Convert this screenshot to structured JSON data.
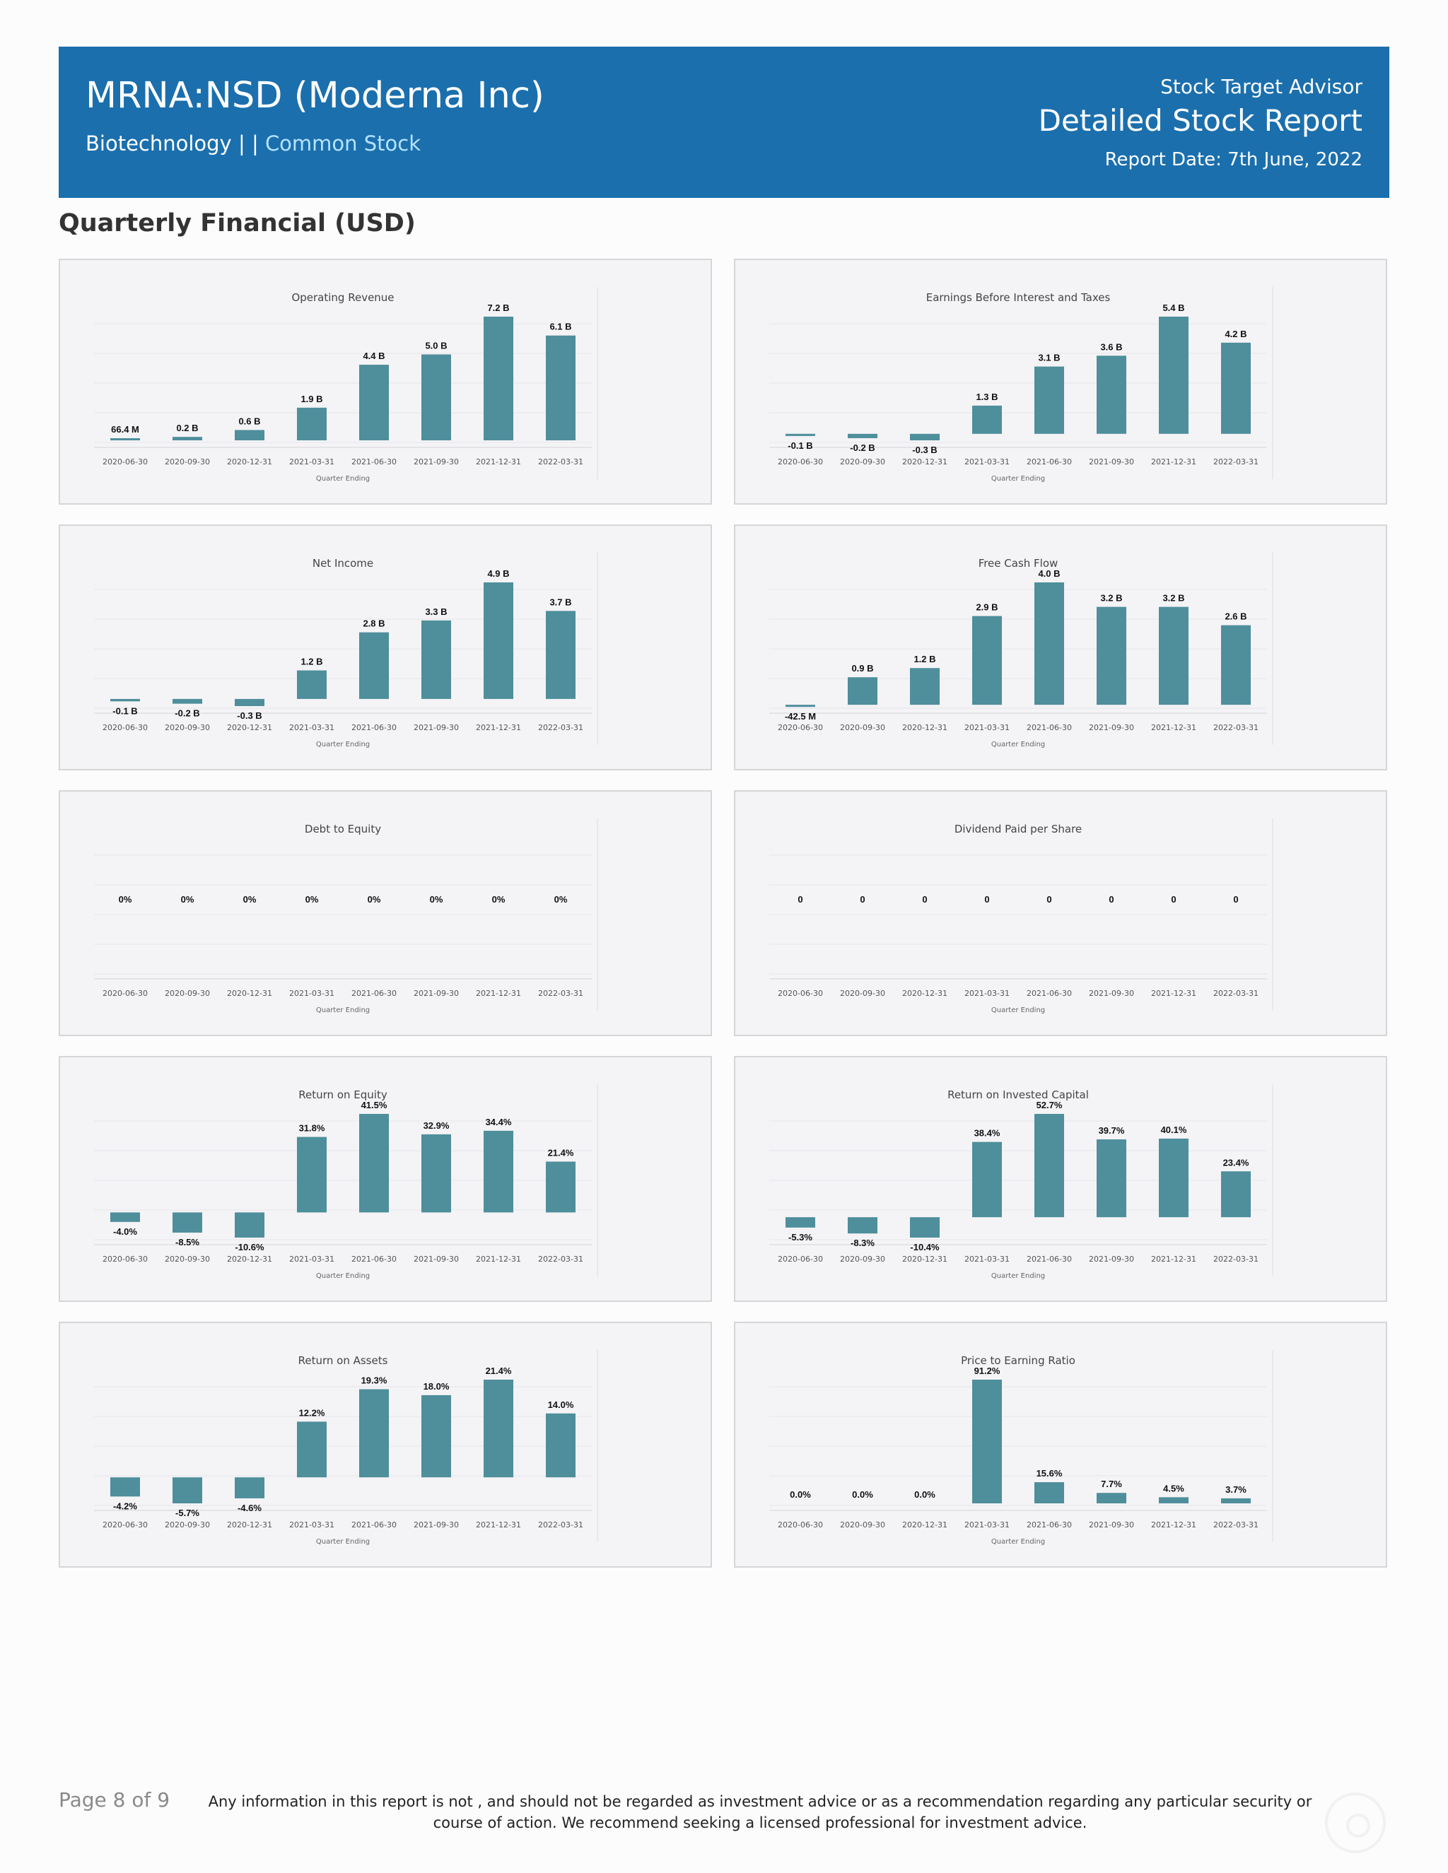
{
  "header": {
    "title": "MRNA:NSD (Moderna Inc)",
    "sector": "Biotechnology",
    "separator": " | | ",
    "stock_type": "Common Stock",
    "brand": "Stock Target Advisor",
    "report_name": "Detailed Stock Report",
    "report_date": "Report Date: 7th June, 2022"
  },
  "section_title": "Quarterly Financial (USD)",
  "footer": {
    "page": "Page 8 of 9",
    "disclaimer": "Any information in this report is not , and should not be regarded as investment advice or as a recommendation regarding any particular security or course of action. We recommend seeking a licensed professional for investment advice."
  },
  "colors": {
    "header_bg": "#1b6fad",
    "bar": "#4e8f9b",
    "panel_bg": "#f4f3f6"
  },
  "chart_data": [
    {
      "type": "bar",
      "title": "Operating Revenue",
      "xlabel": "Quarter Ending",
      "ylabel": "",
      "categories": [
        "2020-06-30",
        "2020-09-30",
        "2020-12-31",
        "2021-03-31",
        "2021-06-30",
        "2021-09-30",
        "2021-12-31",
        "2022-03-31"
      ],
      "values": [
        0.0664,
        0.2,
        0.6,
        1.9,
        4.4,
        5.0,
        7.2,
        6.1
      ],
      "labels": [
        "66.4 M",
        "0.2 B",
        "0.6 B",
        "1.9 B",
        "4.4 B",
        "5.0 B",
        "7.2 B",
        "6.1 B"
      ]
    },
    {
      "type": "bar",
      "title": "Earnings Before Interest and Taxes",
      "xlabel": "Quarter Ending",
      "ylabel": "",
      "categories": [
        "2020-06-30",
        "2020-09-30",
        "2020-12-31",
        "2021-03-31",
        "2021-06-30",
        "2021-09-30",
        "2021-12-31",
        "2022-03-31"
      ],
      "values": [
        -0.1,
        -0.2,
        -0.3,
        1.3,
        3.1,
        3.6,
        5.4,
        4.2
      ],
      "labels": [
        "-0.1 B",
        "-0.2 B",
        "-0.3 B",
        "1.3 B",
        "3.1 B",
        "3.6 B",
        "5.4 B",
        "4.2 B"
      ]
    },
    {
      "type": "bar",
      "title": "Net Income",
      "xlabel": "Quarter Ending",
      "ylabel": "",
      "categories": [
        "2020-06-30",
        "2020-09-30",
        "2020-12-31",
        "2021-03-31",
        "2021-06-30",
        "2021-09-30",
        "2021-12-31",
        "2022-03-31"
      ],
      "values": [
        -0.1,
        -0.2,
        -0.3,
        1.2,
        2.8,
        3.3,
        4.9,
        3.7
      ],
      "labels": [
        "-0.1 B",
        "-0.2 B",
        "-0.3 B",
        "1.2 B",
        "2.8 B",
        "3.3 B",
        "4.9 B",
        "3.7 B"
      ]
    },
    {
      "type": "bar",
      "title": "Free Cash Flow",
      "xlabel": "Quarter Ending",
      "ylabel": "",
      "categories": [
        "2020-06-30",
        "2020-09-30",
        "2020-12-31",
        "2021-03-31",
        "2021-06-30",
        "2021-09-30",
        "2021-12-31",
        "2022-03-31"
      ],
      "values": [
        -0.0425,
        0.9,
        1.2,
        2.9,
        4.0,
        3.2,
        3.2,
        2.6
      ],
      "labels": [
        "-42.5 M",
        "0.9 B",
        "1.2 B",
        "2.9 B",
        "4.0 B",
        "3.2 B",
        "3.2 B",
        "2.6 B"
      ]
    },
    {
      "type": "bar",
      "title": "Debt to Equity",
      "xlabel": "Quarter Ending",
      "ylabel": "",
      "categories": [
        "2020-06-30",
        "2020-09-30",
        "2020-12-31",
        "2021-03-31",
        "2021-06-30",
        "2021-09-30",
        "2021-12-31",
        "2022-03-31"
      ],
      "values": [
        0,
        0,
        0,
        0,
        0,
        0,
        0,
        0
      ],
      "labels": [
        "0%",
        "0%",
        "0%",
        "0%",
        "0%",
        "0%",
        "0%",
        "0%"
      ]
    },
    {
      "type": "bar",
      "title": "Dividend Paid per Share",
      "xlabel": "Quarter Ending",
      "ylabel": "",
      "categories": [
        "2020-06-30",
        "2020-09-30",
        "2020-12-31",
        "2021-03-31",
        "2021-06-30",
        "2021-09-30",
        "2021-12-31",
        "2022-03-31"
      ],
      "values": [
        0,
        0,
        0,
        0,
        0,
        0,
        0,
        0
      ],
      "labels": [
        "0",
        "0",
        "0",
        "0",
        "0",
        "0",
        "0",
        "0"
      ]
    },
    {
      "type": "bar",
      "title": "Return on Equity",
      "xlabel": "Quarter Ending",
      "ylabel": "",
      "categories": [
        "2020-06-30",
        "2020-09-30",
        "2020-12-31",
        "2021-03-31",
        "2021-06-30",
        "2021-09-30",
        "2021-12-31",
        "2022-03-31"
      ],
      "values": [
        -4.0,
        -8.5,
        -10.6,
        31.8,
        41.5,
        32.9,
        34.4,
        21.4
      ],
      "labels": [
        "-4.0%",
        "-8.5%",
        "-10.6%",
        "31.8%",
        "41.5%",
        "32.9%",
        "34.4%",
        "21.4%"
      ]
    },
    {
      "type": "bar",
      "title": "Return on Invested Capital",
      "xlabel": "Quarter Ending",
      "ylabel": "",
      "categories": [
        "2020-06-30",
        "2020-09-30",
        "2020-12-31",
        "2021-03-31",
        "2021-06-30",
        "2021-09-30",
        "2021-12-31",
        "2022-03-31"
      ],
      "values": [
        -5.3,
        -8.3,
        -10.4,
        38.4,
        52.7,
        39.7,
        40.1,
        23.4
      ],
      "labels": [
        "-5.3%",
        "-8.3%",
        "-10.4%",
        "38.4%",
        "52.7%",
        "39.7%",
        "40.1%",
        "23.4%"
      ]
    },
    {
      "type": "bar",
      "title": "Return on Assets",
      "xlabel": "Quarter Ending",
      "ylabel": "",
      "categories": [
        "2020-06-30",
        "2020-09-30",
        "2020-12-31",
        "2021-03-31",
        "2021-06-30",
        "2021-09-30",
        "2021-12-31",
        "2022-03-31"
      ],
      "values": [
        -4.2,
        -5.7,
        -4.6,
        12.2,
        19.3,
        18.0,
        21.4,
        14.0
      ],
      "labels": [
        "-4.2%",
        "-5.7%",
        "-4.6%",
        "12.2%",
        "19.3%",
        "18.0%",
        "21.4%",
        "14.0%"
      ]
    },
    {
      "type": "bar",
      "title": "Price to Earning Ratio",
      "xlabel": "Quarter Ending",
      "ylabel": "",
      "categories": [
        "2020-06-30",
        "2020-09-30",
        "2020-12-31",
        "2021-03-31",
        "2021-06-30",
        "2021-09-30",
        "2021-12-31",
        "2022-03-31"
      ],
      "values": [
        0.0,
        0.0,
        0.0,
        91.2,
        15.6,
        7.7,
        4.5,
        3.7
      ],
      "labels": [
        "0.0%",
        "0.0%",
        "0.0%",
        "91.2%",
        "15.6%",
        "7.7%",
        "4.5%",
        "3.7%"
      ]
    }
  ]
}
